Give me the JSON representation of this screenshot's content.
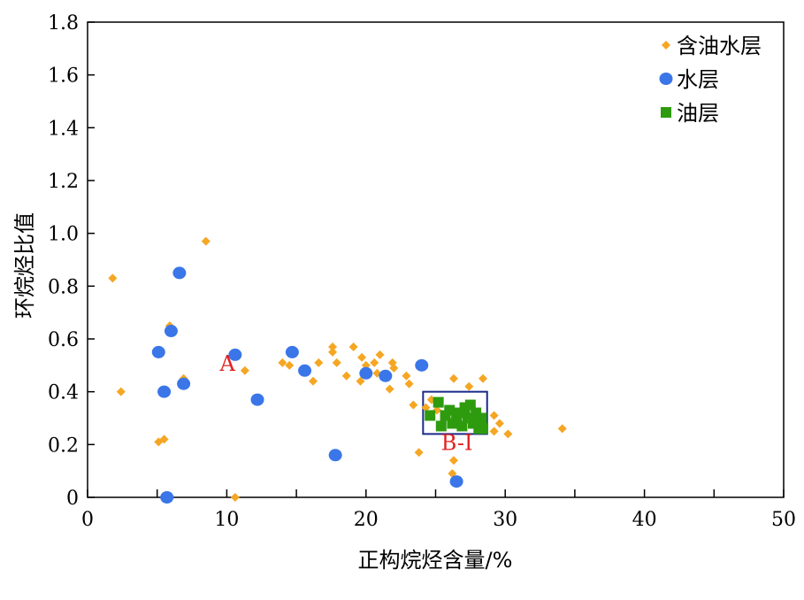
{
  "chart_data": {
    "type": "scatter",
    "xlabel": "正构烷烃含量/%",
    "ylabel": "环烷烃比值",
    "xlim": [
      0,
      50
    ],
    "ylim": [
      0,
      1.8
    ],
    "x_ticks": [
      "0",
      "10",
      "20",
      "30",
      "40",
      "50"
    ],
    "y_ticks": [
      "0",
      "0.2",
      "0.4",
      "0.6",
      "0.8",
      "1.0",
      "1.2",
      "1.4",
      "1.6",
      "1.8"
    ],
    "grid": false,
    "legend_position": "top-right",
    "series": [
      {
        "name": "含油水层",
        "marker": "diamond",
        "color": "#F5A623",
        "points": [
          [
            1.8,
            0.83
          ],
          [
            2.4,
            0.4
          ],
          [
            5.1,
            0.21
          ],
          [
            5.5,
            0.22
          ],
          [
            5.9,
            0.65
          ],
          [
            6.9,
            0.45
          ],
          [
            8.5,
            0.97
          ],
          [
            10.6,
            0.0
          ],
          [
            11.3,
            0.48
          ],
          [
            14.0,
            0.51
          ],
          [
            14.5,
            0.5
          ],
          [
            16.2,
            0.44
          ],
          [
            16.6,
            0.51
          ],
          [
            17.6,
            0.57
          ],
          [
            17.6,
            0.55
          ],
          [
            17.9,
            0.51
          ],
          [
            18.6,
            0.46
          ],
          [
            19.1,
            0.57
          ],
          [
            19.6,
            0.44
          ],
          [
            19.7,
            0.53
          ],
          [
            20.0,
            0.5
          ],
          [
            20.6,
            0.51
          ],
          [
            20.8,
            0.47
          ],
          [
            21.0,
            0.54
          ],
          [
            21.7,
            0.41
          ],
          [
            21.9,
            0.51
          ],
          [
            22.0,
            0.49
          ],
          [
            22.9,
            0.46
          ],
          [
            23.1,
            0.43
          ],
          [
            23.4,
            0.35
          ],
          [
            23.8,
            0.17
          ],
          [
            24.3,
            0.34
          ],
          [
            24.7,
            0.37
          ],
          [
            25.1,
            0.33
          ],
          [
            26.2,
            0.09
          ],
          [
            26.3,
            0.14
          ],
          [
            26.3,
            0.45
          ],
          [
            27.4,
            0.42
          ],
          [
            28.4,
            0.45
          ],
          [
            29.2,
            0.31
          ],
          [
            29.2,
            0.25
          ],
          [
            29.6,
            0.28
          ],
          [
            30.2,
            0.24
          ],
          [
            34.1,
            0.26
          ]
        ]
      },
      {
        "name": "水层",
        "marker": "circle",
        "color": "#3A76E8",
        "points": [
          [
            5.1,
            0.55
          ],
          [
            5.5,
            0.4
          ],
          [
            5.7,
            0.0
          ],
          [
            6.0,
            0.63
          ],
          [
            6.6,
            0.85
          ],
          [
            6.9,
            0.43
          ],
          [
            10.6,
            0.54
          ],
          [
            12.2,
            0.37
          ],
          [
            14.7,
            0.55
          ],
          [
            15.6,
            0.48
          ],
          [
            17.8,
            0.16
          ],
          [
            20.0,
            0.47
          ],
          [
            21.4,
            0.46
          ],
          [
            24.0,
            0.5
          ],
          [
            26.5,
            0.06
          ]
        ]
      },
      {
        "name": "油层",
        "marker": "square",
        "color": "#2E9B0E",
        "points": [
          [
            24.6,
            0.31
          ],
          [
            25.2,
            0.36
          ],
          [
            25.4,
            0.27
          ],
          [
            25.7,
            0.31
          ],
          [
            26.0,
            0.33
          ],
          [
            26.2,
            0.28
          ],
          [
            26.5,
            0.3
          ],
          [
            26.7,
            0.32
          ],
          [
            26.9,
            0.27
          ],
          [
            27.1,
            0.34
          ],
          [
            27.3,
            0.3
          ],
          [
            27.5,
            0.35
          ],
          [
            27.7,
            0.28
          ],
          [
            27.9,
            0.32
          ],
          [
            28.1,
            0.26
          ],
          [
            28.3,
            0.3
          ],
          [
            28.4,
            0.26
          ]
        ]
      }
    ],
    "annotations": [
      {
        "text": "A",
        "x": 9.5,
        "y": 0.48,
        "color": "#E02020"
      },
      {
        "text": "B-I",
        "x": 25.4,
        "y": 0.18,
        "color": "#E02020"
      }
    ],
    "box": {
      "x0": 24.1,
      "x1": 28.7,
      "y0": 0.24,
      "y1": 0.4,
      "color": "#1A2A8A"
    }
  }
}
